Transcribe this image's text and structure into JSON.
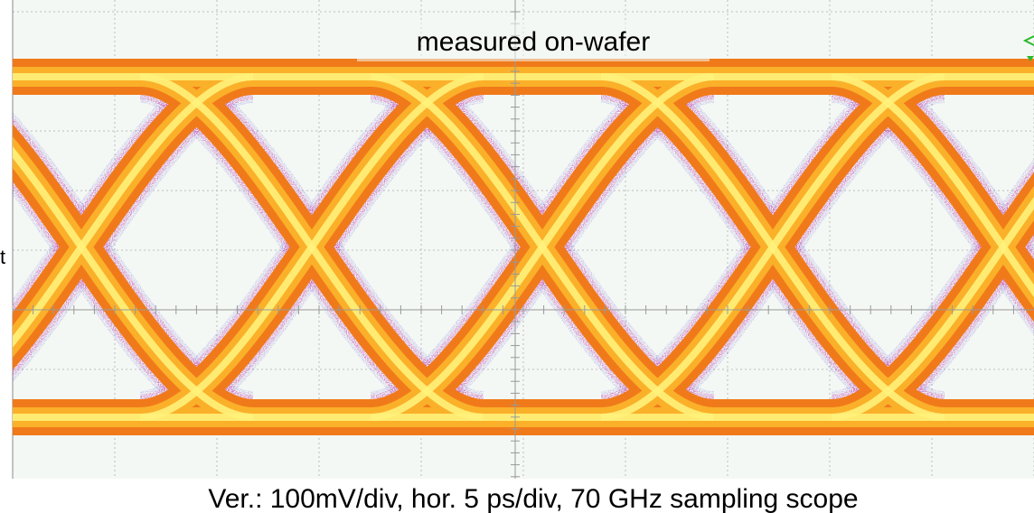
{
  "title": "measured on-wafer",
  "caption": "Ver.: 100mV/div, hor. 5 ps/div, 70 GHz sampling scope"
}
